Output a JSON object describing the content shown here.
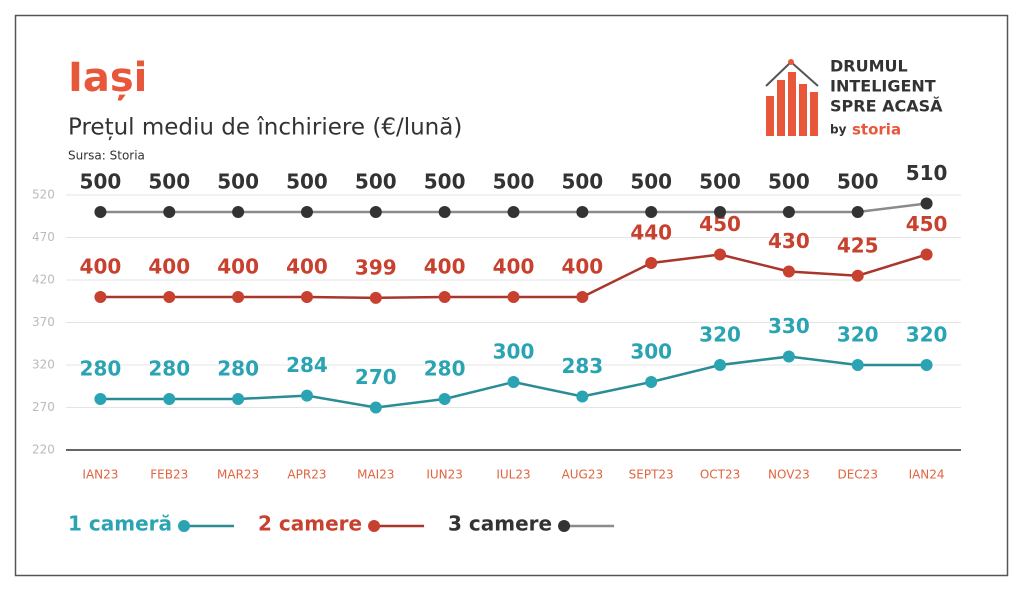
{
  "chart_data": {
    "type": "line",
    "title": "Iași",
    "subtitle": "Prețul mediu de închiriere (€/lună)",
    "source": "Sursa: Storia",
    "brand": [
      "DRUMUL",
      "INTELIGENT",
      "SPRE ACASĂ"
    ],
    "brand_by": "by",
    "brand_name": "storia",
    "categories": [
      "IAN23",
      "FEB23",
      "MAR23",
      "APR23",
      "MAI23",
      "IUN23",
      "IUL23",
      "AUG23",
      "SEPT23",
      "OCT23",
      "NOV23",
      "DEC23",
      "IAN24"
    ],
    "series": [
      {
        "name": "1 cameră",
        "color": "#2aa3b3",
        "line_color": "#2a8c96",
        "values": [
          280,
          280,
          280,
          284,
          270,
          280,
          300,
          283,
          300,
          320,
          330,
          320,
          320
        ]
      },
      {
        "name": "2 camere",
        "color": "#c8402e",
        "line_color": "#a8362b",
        "values": [
          400,
          400,
          400,
          400,
          399,
          400,
          400,
          400,
          440,
          450,
          430,
          425,
          450
        ]
      },
      {
        "name": "3 camere",
        "color": "#333333",
        "line_color": "#8c8a8e",
        "values": [
          500,
          500,
          500,
          500,
          500,
          500,
          500,
          500,
          500,
          500,
          500,
          500,
          510
        ]
      }
    ],
    "ylim": [
      220,
      540
    ],
    "yticks": [
      220,
      270,
      320,
      370,
      420,
      470,
      520
    ],
    "grid": true
  }
}
